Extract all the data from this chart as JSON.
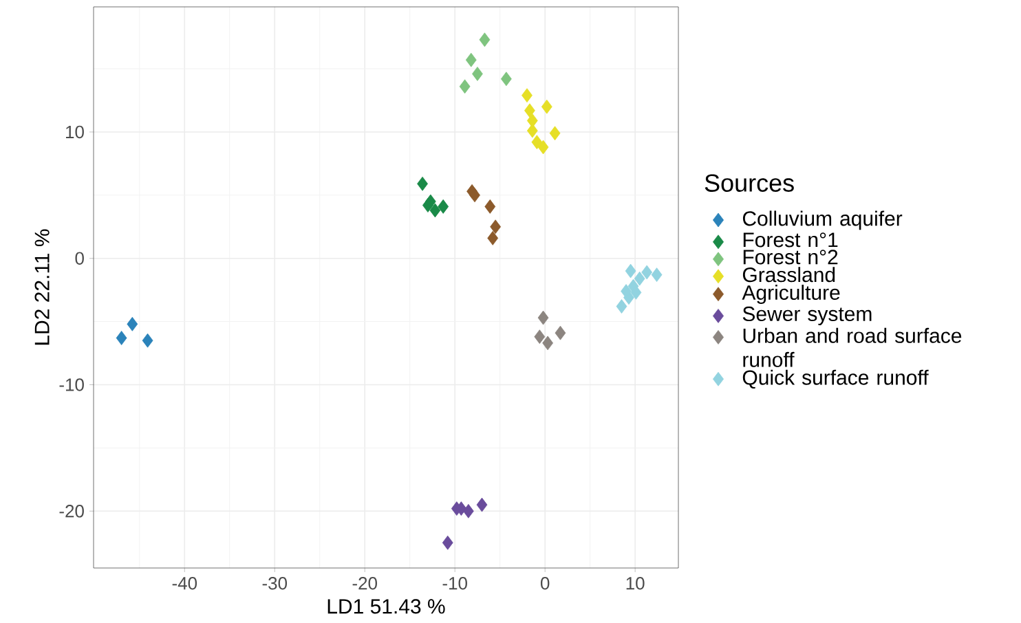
{
  "chart_data": {
    "type": "scatter",
    "xlabel": "LD1 51.43 %",
    "ylabel": "LD2 22.11 %",
    "legend_title": "Sources",
    "legend": "right",
    "grid": true,
    "marker": "diamond",
    "xlim": [
      -50.1,
      14.8
    ],
    "ylim": [
      -24.5,
      19.9
    ],
    "xticks": [
      -40,
      -30,
      -20,
      -10,
      0,
      10
    ],
    "yticks": [
      -20,
      -10,
      0,
      10
    ],
    "series": [
      {
        "name": "Colluvium aquifer",
        "color": "#2b83ba",
        "x": [
          -47.0,
          -45.8,
          -44.1
        ],
        "values": [
          -6.3,
          -5.2,
          -6.5
        ]
      },
      {
        "name": "Forest n°1",
        "color": "#1a8a48",
        "x": [
          -13.6,
          -13.0,
          -12.2,
          -11.3,
          -12.7
        ],
        "values": [
          5.9,
          4.2,
          3.8,
          4.1,
          4.5
        ]
      },
      {
        "name": "Forest n°2",
        "color": "#7fc47f",
        "x": [
          -6.7,
          -8.2,
          -7.5,
          -8.9,
          -4.3
        ],
        "values": [
          17.3,
          15.7,
          14.6,
          13.6,
          14.2
        ]
      },
      {
        "name": "Grassland",
        "color": "#e6df27",
        "x": [
          -2.0,
          0.2,
          -1.7,
          -1.4,
          -1.4,
          1.1,
          -0.2,
          -0.9
        ],
        "values": [
          12.9,
          12.0,
          11.7,
          10.9,
          10.1,
          9.9,
          8.8,
          9.2
        ]
      },
      {
        "name": "Agriculture",
        "color": "#8c5a2b",
        "x": [
          -8.1,
          -7.8,
          -6.1,
          -5.5,
          -5.8
        ],
        "values": [
          5.3,
          5.0,
          4.1,
          2.5,
          1.6
        ]
      },
      {
        "name": "Sewer system",
        "color": "#6a4c9c",
        "x": [
          -10.8,
          -9.3,
          -8.5,
          -7.0,
          -9.8
        ],
        "values": [
          -22.5,
          -19.8,
          -20.0,
          -19.5,
          -19.8
        ]
      },
      {
        "name": "Urban and road surface runoff",
        "color": "#8c8580",
        "x": [
          -0.2,
          -0.6,
          0.3,
          1.7
        ],
        "values": [
          -4.7,
          -6.2,
          -6.7,
          -5.9
        ]
      },
      {
        "name": "Quick surface runoff",
        "color": "#92d3e0",
        "x": [
          11.3,
          12.4,
          9.5,
          8.5,
          9.3,
          9.8,
          10.5,
          9.0,
          10.1
        ],
        "values": [
          -1.1,
          -1.3,
          -1.0,
          -3.8,
          -3.1,
          -2.2,
          -1.6,
          -2.6,
          -2.7
        ]
      }
    ]
  }
}
